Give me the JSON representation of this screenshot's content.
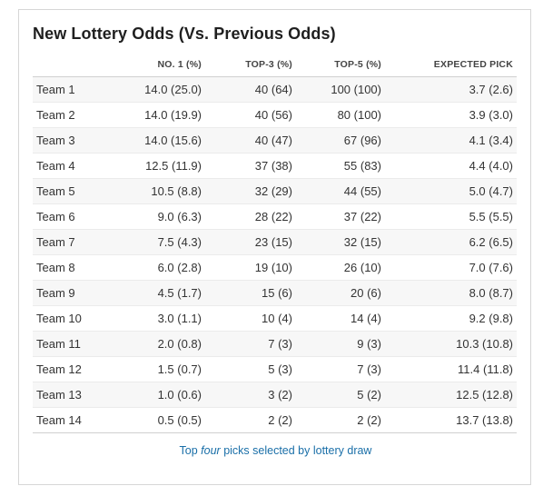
{
  "title": "New Lottery Odds (Vs. Previous Odds)",
  "columns": [
    "",
    "NO. 1 (%)",
    "TOP-3 (%)",
    "TOP-5 (%)",
    "EXPECTED PICK"
  ],
  "rows": [
    [
      "Team 1",
      "14.0 (25.0)",
      "40 (64)",
      "100 (100)",
      "3.7 (2.6)"
    ],
    [
      "Team 2",
      "14.0 (19.9)",
      "40 (56)",
      "80 (100)",
      "3.9 (3.0)"
    ],
    [
      "Team 3",
      "14.0 (15.6)",
      "40 (47)",
      "67 (96)",
      "4.1 (3.4)"
    ],
    [
      "Team 4",
      "12.5 (11.9)",
      "37 (38)",
      "55 (83)",
      "4.4 (4.0)"
    ],
    [
      "Team 5",
      "10.5 (8.8)",
      "32 (29)",
      "44 (55)",
      "5.0 (4.7)"
    ],
    [
      "Team 6",
      "9.0 (6.3)",
      "28 (22)",
      "37 (22)",
      "5.5 (5.5)"
    ],
    [
      "Team 7",
      "7.5 (4.3)",
      "23 (15)",
      "32 (15)",
      "6.2 (6.5)"
    ],
    [
      "Team 8",
      "6.0 (2.8)",
      "19 (10)",
      "26 (10)",
      "7.0 (7.6)"
    ],
    [
      "Team 9",
      "4.5 (1.7)",
      "15 (6)",
      "20 (6)",
      "8.0 (8.7)"
    ],
    [
      "Team 10",
      "3.0 (1.1)",
      "10 (4)",
      "14 (4)",
      "9.2 (9.8)"
    ],
    [
      "Team 11",
      "2.0 (0.8)",
      "7 (3)",
      "9 (3)",
      "10.3 (10.8)"
    ],
    [
      "Team 12",
      "1.5 (0.7)",
      "5 (3)",
      "7 (3)",
      "11.4 (11.8)"
    ],
    [
      "Team 13",
      "1.0 (0.6)",
      "3 (2)",
      "5 (2)",
      "12.5 (12.8)"
    ],
    [
      "Team 14",
      "0.5 (0.5)",
      "2 (2)",
      "2 (2)",
      "13.7 (13.8)"
    ]
  ],
  "footnote": {
    "before": "Top ",
    "emphasis": "four",
    "after": " picks selected by lottery draw"
  },
  "colors": {
    "footnote_link": "#1a6fa8",
    "stripe": "#f7f7f7",
    "border": "#d6d6d6"
  }
}
